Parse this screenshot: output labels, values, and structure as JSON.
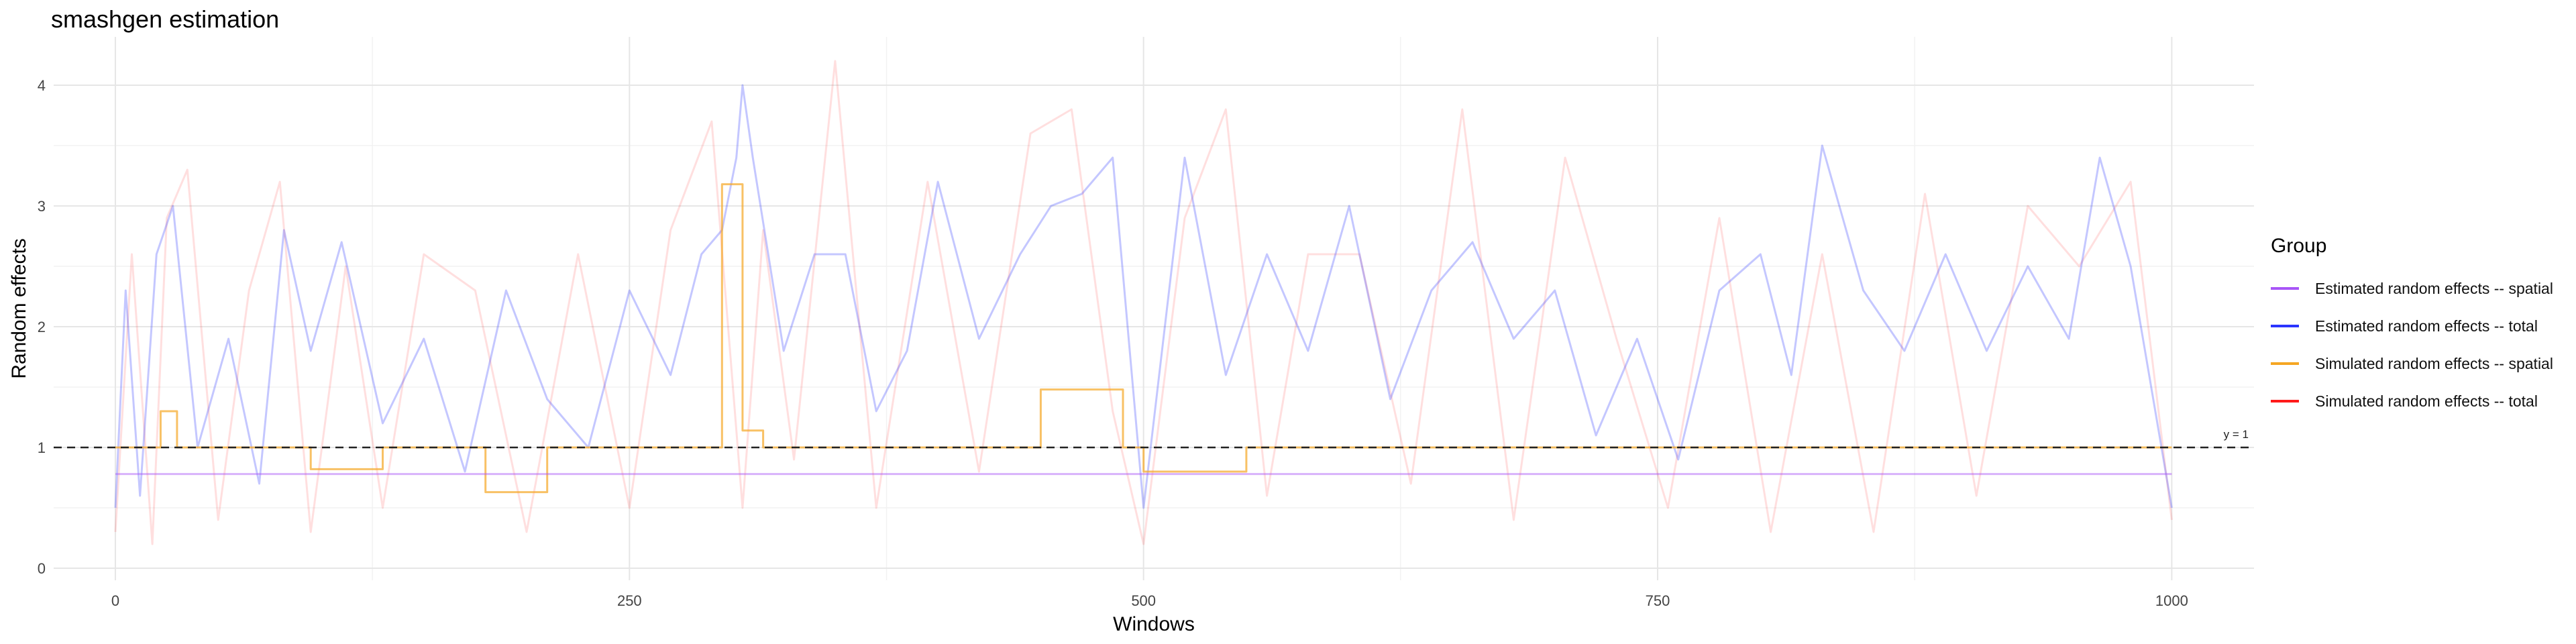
{
  "chart_data": {
    "type": "line",
    "title": "smashgen estimation",
    "xlabel": "Windows",
    "ylabel": "Random effects",
    "xlim": [
      -30,
      1040
    ],
    "ylim": [
      -0.1,
      4.4
    ],
    "xticks": [
      0,
      250,
      500,
      750,
      1000
    ],
    "xtick_labels": [
      "0",
      "250",
      "500",
      "750",
      "1000"
    ],
    "yticks": [
      0,
      1,
      2,
      3,
      4
    ],
    "ytick_labels": [
      "0",
      "1",
      "2",
      "3",
      "4"
    ],
    "grid": true,
    "reference_line": {
      "y": 1,
      "label": "y = 1",
      "style": "dashed"
    },
    "legend": {
      "title": "Group",
      "position": "right",
      "entries": [
        {
          "label": "Estimated random effects -- spatial",
          "color": "#a855f7"
        },
        {
          "label": "Estimated random effects -- total",
          "color": "#2b35ff"
        },
        {
          "label": "Simulated random effects -- spatial",
          "color": "#f5a623"
        },
        {
          "label": "Simulated random effects -- total",
          "color": "#ff1a1a"
        }
      ]
    },
    "series": [
      {
        "key": "est_spatial",
        "color": "#a855f7",
        "opacity": 0.45,
        "x": [
          0,
          50,
          100,
          150,
          200,
          250,
          300,
          350,
          400,
          450,
          500,
          550,
          600,
          650,
          700,
          750,
          800,
          850,
          900,
          950,
          1000
        ],
        "values": [
          0.78,
          0.78,
          0.78,
          0.78,
          0.78,
          0.78,
          0.78,
          0.78,
          0.78,
          0.78,
          0.78,
          0.78,
          0.78,
          0.78,
          0.78,
          0.78,
          0.78,
          0.78,
          0.78,
          0.78,
          0.78
        ]
      },
      {
        "key": "est_total",
        "color": "#2b35ff",
        "opacity": 0.28,
        "x": [
          0,
          5,
          12,
          20,
          28,
          40,
          55,
          70,
          82,
          95,
          110,
          130,
          150,
          170,
          190,
          210,
          230,
          250,
          270,
          285,
          295,
          302,
          305,
          310,
          325,
          340,
          355,
          370,
          385,
          400,
          420,
          440,
          455,
          470,
          485,
          500,
          520,
          540,
          560,
          580,
          600,
          620,
          640,
          660,
          680,
          700,
          720,
          740,
          760,
          780,
          800,
          815,
          830,
          850,
          870,
          890,
          910,
          930,
          950,
          965,
          980,
          1000
        ],
        "values": [
          0.5,
          2.3,
          0.6,
          2.6,
          3.0,
          1.0,
          1.9,
          0.7,
          2.8,
          1.8,
          2.7,
          1.2,
          1.9,
          0.8,
          2.3,
          1.4,
          1.0,
          2.3,
          1.6,
          2.6,
          2.8,
          3.4,
          4.0,
          3.4,
          1.8,
          2.6,
          2.6,
          1.3,
          1.8,
          3.2,
          1.9,
          2.6,
          3.0,
          3.1,
          3.4,
          0.5,
          3.4,
          1.6,
          2.6,
          1.8,
          3.0,
          1.4,
          2.3,
          2.7,
          1.9,
          2.3,
          1.1,
          1.9,
          0.9,
          2.3,
          2.6,
          1.6,
          3.5,
          2.3,
          1.8,
          2.6,
          1.8,
          2.5,
          1.9,
          3.4,
          2.5,
          0.5
        ]
      },
      {
        "key": "sim_spatial",
        "color": "#f5a623",
        "opacity": 0.7,
        "x": [
          0,
          22,
          22,
          30,
          30,
          95,
          95,
          130,
          130,
          180,
          180,
          210,
          210,
          295,
          295,
          305,
          305,
          315,
          315,
          345,
          345,
          450,
          450,
          490,
          490,
          500,
          500,
          550,
          550,
          1000
        ],
        "values": [
          1.0,
          1.0,
          1.3,
          1.3,
          1.0,
          1.0,
          0.82,
          0.82,
          1.0,
          1.0,
          0.63,
          0.63,
          1.0,
          1.0,
          3.18,
          3.18,
          1.14,
          1.14,
          1.0,
          1.0,
          1.0,
          1.0,
          1.48,
          1.48,
          1.0,
          1.0,
          0.8,
          0.8,
          1.0,
          1.0
        ]
      },
      {
        "key": "sim_total",
        "color": "#ff1a1a",
        "opacity": 0.14,
        "x": [
          0,
          8,
          18,
          25,
          35,
          50,
          65,
          80,
          95,
          112,
          130,
          150,
          175,
          200,
          225,
          250,
          270,
          290,
          305,
          315,
          330,
          350,
          370,
          395,
          420,
          445,
          465,
          485,
          500,
          520,
          540,
          560,
          580,
          605,
          630,
          655,
          680,
          705,
          730,
          755,
          780,
          805,
          830,
          855,
          880,
          905,
          930,
          955,
          980,
          1000
        ],
        "values": [
          0.3,
          2.6,
          0.2,
          2.9,
          3.3,
          0.4,
          2.3,
          3.2,
          0.3,
          2.5,
          0.5,
          2.6,
          2.3,
          0.3,
          2.6,
          0.5,
          2.8,
          3.7,
          0.5,
          2.8,
          0.9,
          4.2,
          0.5,
          3.2,
          0.8,
          3.6,
          3.8,
          1.3,
          0.2,
          2.9,
          3.8,
          0.6,
          2.6,
          2.6,
          0.7,
          3.8,
          0.4,
          3.4,
          1.9,
          0.5,
          2.9,
          0.3,
          2.6,
          0.3,
          3.1,
          0.6,
          3.0,
          2.5,
          3.2,
          0.4
        ]
      }
    ]
  }
}
